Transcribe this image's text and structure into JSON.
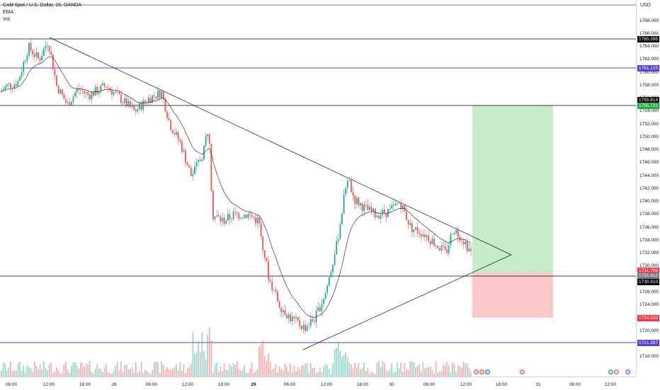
{
  "legend": {
    "symbol": "Gold Spot / U.S. Dollar, 15, OANDA",
    "ema": "EMA",
    "vol": "Vol"
  },
  "price_axis": {
    "currency": "USD",
    "ticks": [
      "1768.000",
      "1766.000",
      "1764.000",
      "1762.000",
      "1760.000",
      "1758.000",
      "1756.000",
      "1754.000",
      "1752.000",
      "1750.000",
      "1748.000",
      "1746.000",
      "1744.000",
      "1742.000",
      "1740.000",
      "1738.000",
      "1736.000",
      "1734.000",
      "1732.000",
      "1730.000",
      "1728.000",
      "1726.000",
      "1724.000",
      "1722.000",
      "1720.000",
      "1718.000",
      "1716.000"
    ],
    "labels": [
      {
        "text": "1765.395",
        "color": "#000000"
      },
      {
        "text": "1761.125",
        "color": "#5b3fd6"
      },
      {
        "text": "1755.814",
        "color": "#000000"
      },
      {
        "text": "1755.721",
        "color": "#22ab3f"
      },
      {
        "text": "1731.796",
        "color": "#f23645"
      },
      {
        "text": "1731.412",
        "color": "#787b86"
      },
      {
        "text": "1730.910",
        "color": "#000000"
      },
      {
        "text": "1724.933",
        "color": "#f23645"
      },
      {
        "text": "1721.287",
        "color": "#5b3fd6"
      }
    ]
  },
  "time_axis": {
    "ticks": [
      {
        "text": "06:00",
        "bold": false
      },
      {
        "text": "12:00",
        "bold": false
      },
      {
        "text": "18:00",
        "bold": false
      },
      {
        "text": "26",
        "bold": false
      },
      {
        "text": "06:00",
        "bold": false
      },
      {
        "text": "12:00",
        "bold": false
      },
      {
        "text": "18:00",
        "bold": false
      },
      {
        "text": "29",
        "bold": true
      },
      {
        "text": "06:00",
        "bold": false
      },
      {
        "text": "12:00",
        "bold": false
      },
      {
        "text": "18:00",
        "bold": false
      },
      {
        "text": "30",
        "bold": false
      },
      {
        "text": "06:00",
        "bold": false
      },
      {
        "text": "12:00",
        "bold": false
      },
      {
        "text": "18:00",
        "bold": false
      },
      {
        "text": "31",
        "bold": false
      },
      {
        "text": "06:00",
        "bold": false
      },
      {
        "text": "12:00",
        "bold": false
      }
    ]
  },
  "colors": {
    "up": "#26a69a",
    "down": "#ef5350",
    "horizontal_line": "#000000",
    "purple_line": "#5b3fd6",
    "target_zone": "#c8ecc9",
    "stop_zone": "#fbc9c9"
  }
}
